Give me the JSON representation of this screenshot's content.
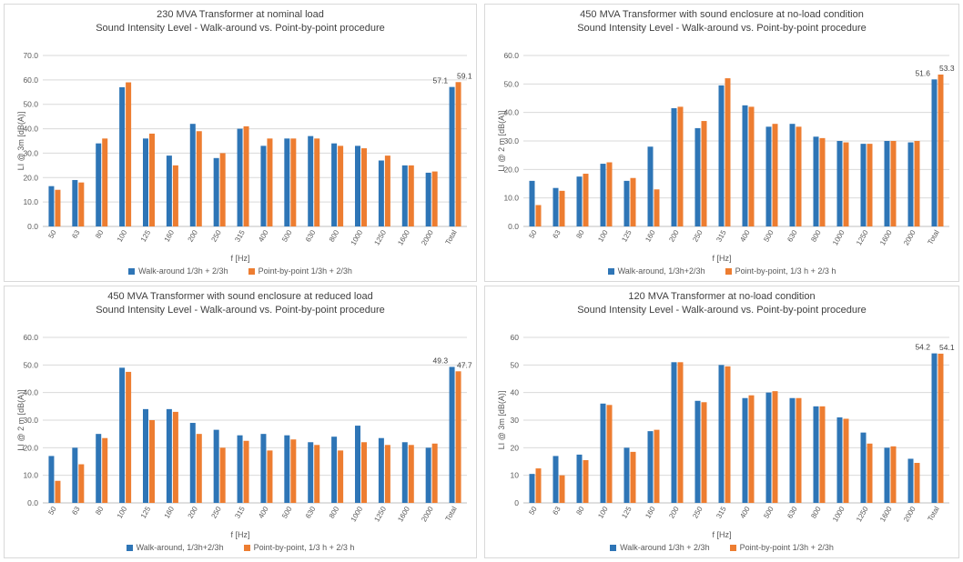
{
  "colors": {
    "walk": "#2e75b6",
    "point": "#ed7d31",
    "grid": "#d9d9d9",
    "axis": "#bfbfbf",
    "text": "#595959"
  },
  "chart_data": [
    {
      "type": "bar",
      "title": "230 MVA Transformer at nominal load",
      "subtitle": "Sound Intensity Level - Walk-around vs. Point-by-point procedure",
      "xlabel": "f [Hz]",
      "ylabel": "LI @ 3m [dB(A)]",
      "ylim": [
        0,
        70
      ],
      "yticks": [
        "0.0",
        "10.0",
        "20.0",
        "30.0",
        "40.0",
        "50.0",
        "60.0",
        "70.0"
      ],
      "categories": [
        "50",
        "63",
        "80",
        "100",
        "125",
        "160",
        "200",
        "250",
        "315",
        "400",
        "500",
        "630",
        "800",
        "1000",
        "1250",
        "1600",
        "2000",
        "Total"
      ],
      "series": [
        {
          "name": "Walk-around 1/3h + 2/3h",
          "values": [
            16.5,
            19,
            34,
            57,
            36,
            29,
            42,
            28,
            40,
            33,
            36,
            37,
            34,
            33,
            27,
            25,
            22,
            57.1
          ]
        },
        {
          "name": "Point-by-point 1/3h + 2/3h",
          "values": [
            15,
            18,
            36,
            59,
            38,
            25,
            39,
            30,
            41,
            36,
            36,
            36,
            33,
            32,
            29,
            25,
            22.5,
            59.1
          ]
        }
      ],
      "data_labels": [
        "57.1",
        "59.1"
      ],
      "legend": "bottom",
      "grid": true
    },
    {
      "type": "bar",
      "title": "450 MVA Transformer with sound enclosure at no-load condition",
      "subtitle": "Sound Intensity Level - Walk-around vs. Point-by-point procedure",
      "xlabel": "f [Hz]",
      "ylabel": "LI @ 2 m [dB(A)]",
      "ylim": [
        0,
        60
      ],
      "yticks": [
        "0.0",
        "10.0",
        "20.0",
        "30.0",
        "40.0",
        "50.0",
        "60.0"
      ],
      "categories": [
        "50",
        "63",
        "80",
        "100",
        "125",
        "160",
        "200",
        "250",
        "315",
        "400",
        "500",
        "630",
        "800",
        "1000",
        "1250",
        "1600",
        "2000",
        "Total"
      ],
      "series": [
        {
          "name": "Walk-around, 1/3h+2/3h",
          "values": [
            16,
            13.5,
            17.5,
            22,
            16,
            28,
            41.5,
            34.5,
            49.5,
            42.5,
            35,
            36,
            31.5,
            30,
            29,
            30,
            29.5,
            51.6
          ]
        },
        {
          "name": "Point-by-point, 1/3 h + 2/3 h",
          "values": [
            7.5,
            12.5,
            18.5,
            22.5,
            17,
            13,
            42,
            37,
            52,
            42,
            36,
            35,
            31,
            29.5,
            29,
            30,
            30,
            53.3
          ]
        }
      ],
      "data_labels": [
        "51.6",
        "53.3"
      ],
      "legend": "bottom",
      "grid": true
    },
    {
      "type": "bar",
      "title": "450 MVA Transformer with sound enclosure at reduced load",
      "subtitle": "Sound Intensity Level - Walk-around vs. Point-by-point procedure",
      "xlabel": "f [Hz]",
      "ylabel": "LI @ 2 m [dB(A)]",
      "ylim": [
        0,
        60
      ],
      "yticks": [
        "0.0",
        "10.0",
        "20.0",
        "30.0",
        "40.0",
        "50.0",
        "60.0"
      ],
      "categories": [
        "50",
        "63",
        "80",
        "100",
        "125",
        "160",
        "200",
        "250",
        "315",
        "400",
        "500",
        "630",
        "800",
        "1000",
        "1250",
        "1600",
        "2000",
        "Total"
      ],
      "series": [
        {
          "name": "Walk-around, 1/3h+2/3h",
          "values": [
            17,
            20,
            25,
            49,
            34,
            34,
            29,
            26.5,
            24.5,
            25,
            24.5,
            22,
            24,
            28,
            23.5,
            22,
            20,
            49.3
          ]
        },
        {
          "name": "Point-by-point, 1/3 h + 2/3 h",
          "values": [
            8,
            14,
            23.5,
            47.5,
            30,
            33,
            25,
            20,
            22.5,
            19,
            23,
            21,
            19,
            22,
            21,
            21,
            21.5,
            47.7
          ]
        }
      ],
      "data_labels": [
        "49.3",
        "47.7"
      ],
      "legend": "bottom",
      "grid": true
    },
    {
      "type": "bar",
      "title": "120 MVA Transformer at no-load condition",
      "subtitle": "Sound Intensity Level - Walk-around vs. Point-by-point procedure",
      "xlabel": "f [Hz]",
      "ylabel": "LI @ 3m [dB(A)]",
      "ylim": [
        0,
        60
      ],
      "yticks": [
        "0",
        "10",
        "20",
        "30",
        "40",
        "50",
        "60"
      ],
      "categories": [
        "50",
        "63",
        "80",
        "100",
        "125",
        "160",
        "200",
        "250",
        "315",
        "400",
        "500",
        "630",
        "800",
        "1000",
        "1250",
        "1600",
        "2000",
        "Total"
      ],
      "series": [
        {
          "name": "Walk-around 1/3h + 2/3h",
          "values": [
            10.5,
            17,
            17.5,
            36,
            20,
            26,
            51,
            37,
            50,
            38,
            40,
            38,
            35,
            31,
            25.5,
            20,
            16,
            54.2
          ]
        },
        {
          "name": "Point-by-point 1/3h + 2/3h",
          "values": [
            12.5,
            10,
            15.5,
            35.5,
            18.5,
            26.5,
            51,
            36.5,
            49.5,
            39,
            40.5,
            38,
            35,
            30.5,
            21.5,
            20.5,
            14.5,
            54.1
          ]
        }
      ],
      "data_labels": [
        "54.2",
        "54.1"
      ],
      "legend": "bottom",
      "grid": true
    }
  ]
}
